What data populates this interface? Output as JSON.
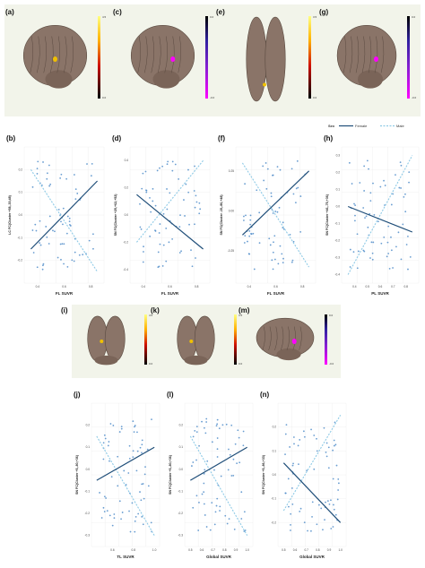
{
  "top_panels": [
    {
      "label": "(a)",
      "view": "lateral",
      "scale_top": "4.5",
      "scale_bottom": "0.0",
      "colormap": "hot"
    },
    {
      "label": "(c)",
      "view": "lateral",
      "scale_top": "0.0",
      "scale_bottom": "-0.0",
      "colormap": "cool"
    },
    {
      "label": "(e)",
      "view": "ventral",
      "scale_top": "3.5",
      "scale_bottom": "0.0",
      "colormap": "hot"
    },
    {
      "label": "(g)",
      "view": "lateral",
      "scale_top": "0.0",
      "scale_bottom": "-0.0",
      "colormap": "cool"
    }
  ],
  "bottom_panels": [
    {
      "label": "(i)",
      "view": "posterior",
      "scale_top": "4.5",
      "scale_bottom": "0.0",
      "colormap": "hot"
    },
    {
      "label": "(k)",
      "view": "posterior",
      "scale_top": "3.5",
      "scale_bottom": "0.0",
      "colormap": "hot"
    },
    {
      "label": "(m)",
      "view": "lateral",
      "scale_top": "0.0",
      "scale_bottom": "-0.0",
      "colormap": "cool"
    }
  ],
  "legend": {
    "title": "Sex",
    "female": "Female",
    "male": "Male"
  },
  "colors": {
    "female_line": "#1f4e79",
    "male_line": "#8ecae6",
    "points": "#4f8cc9",
    "panel_bg": "#f2f4ea",
    "brain": "#8a7468"
  },
  "chart_data": [
    {
      "label": "(b)",
      "type": "scatter",
      "xlabel": "FL SUVR",
      "ylabel": "LC FC(Cluster +58,-30,48)",
      "xticks": [
        "0.4",
        "0.6",
        "0.8"
      ],
      "xlim": [
        0.3,
        0.9
      ],
      "yticks": [
        "0.2",
        "0.1",
        "0.0",
        "-0.1",
        "-0.2"
      ],
      "ylim": [
        -0.3,
        0.3
      ],
      "female_line": [
        [
          0.35,
          -0.15
        ],
        [
          0.85,
          0.15
        ]
      ],
      "male_line": [
        [
          0.35,
          0.2
        ],
        [
          0.85,
          -0.25
        ]
      ]
    },
    {
      "label": "(d)",
      "type": "scatter",
      "xlabel": "FL SUVR",
      "ylabel": "SN FC(Cluster +25,+62,+52)",
      "xticks": [
        "0.4",
        "0.6",
        "0.8"
      ],
      "xlim": [
        0.3,
        0.9
      ],
      "yticks": [
        "0.4",
        "0.2",
        "0.0",
        "-0.2",
        "-0.4"
      ],
      "ylim": [
        -0.5,
        0.5
      ],
      "female_line": [
        [
          0.35,
          0.15
        ],
        [
          0.85,
          -0.25
        ]
      ],
      "male_line": [
        [
          0.35,
          -0.2
        ],
        [
          0.85,
          0.4
        ]
      ]
    },
    {
      "label": "(f)",
      "type": "scatter",
      "xlabel": "FL SUVR",
      "ylabel": "SN FC(Cluster -15,-86,+48)",
      "xticks": [
        "0.4",
        "0.6",
        "0.8"
      ],
      "xlim": [
        0.3,
        0.9
      ],
      "yticks": [
        "0.25",
        "0.00",
        "-0.25"
      ],
      "ylim": [
        -0.45,
        0.4
      ],
      "female_line": [
        [
          0.35,
          -0.15
        ],
        [
          0.85,
          0.25
        ]
      ],
      "male_line": [
        [
          0.35,
          0.3
        ],
        [
          0.85,
          -0.35
        ]
      ]
    },
    {
      "label": "(h)",
      "type": "scatter",
      "xlabel": "PL SUVR",
      "ylabel": "SN FC(Cluster +46,-75,+36)",
      "xticks": [
        "0.4",
        "0.5",
        "0.6",
        "0.7",
        "0.8"
      ],
      "xlim": [
        0.3,
        0.9
      ],
      "yticks": [
        "0.3",
        "0.2",
        "0.1",
        "0.0",
        "-0.1",
        "-0.2",
        "-0.3",
        "-0.4"
      ],
      "ylim": [
        -0.45,
        0.35
      ],
      "female_line": [
        [
          0.35,
          0.0
        ],
        [
          0.85,
          -0.15
        ]
      ],
      "male_line": [
        [
          0.35,
          -0.4
        ],
        [
          0.85,
          0.3
        ]
      ]
    },
    {
      "label": "(j)",
      "type": "scatter",
      "xlabel": "TL SUVR",
      "ylabel": "SN FC(Cluster +5,-80,+36)",
      "xticks": [
        "0.6",
        "0.8",
        "1.0"
      ],
      "xlim": [
        0.4,
        1.05
      ],
      "yticks": [
        "0.2",
        "0.1",
        "0.0",
        "-0.1",
        "-0.2",
        "-0.3"
      ],
      "ylim": [
        -0.35,
        0.3
      ],
      "female_line": [
        [
          0.45,
          -0.05
        ],
        [
          1.0,
          0.1
        ]
      ],
      "male_line": [
        [
          0.45,
          0.15
        ],
        [
          1.0,
          -0.3
        ]
      ]
    },
    {
      "label": "(l)",
      "type": "scatter",
      "xlabel": "Global SUVR",
      "ylabel": "SN FC(Cluster +5,-80,+36)",
      "xticks": [
        "0.5",
        "0.6",
        "0.7",
        "0.8",
        "0.9",
        "1.0"
      ],
      "xlim": [
        0.45,
        1.05
      ],
      "yticks": [
        "0.2",
        "0.1",
        "0.0",
        "-0.1",
        "-0.2",
        "-0.3"
      ],
      "ylim": [
        -0.35,
        0.3
      ],
      "female_line": [
        [
          0.5,
          -0.05
        ],
        [
          1.0,
          0.1
        ]
      ],
      "male_line": [
        [
          0.5,
          0.15
        ],
        [
          1.0,
          -0.3
        ]
      ]
    },
    {
      "label": "(n)",
      "type": "scatter",
      "xlabel": "Global SUVR",
      "ylabel": "SN FC(Cluster +5,-86,+33)",
      "xticks": [
        "0.5",
        "0.6",
        "0.7",
        "0.8",
        "0.9",
        "1.0"
      ],
      "xlim": [
        0.45,
        1.05
      ],
      "yticks": [
        "0.2",
        "0.1",
        "0.0",
        "-0.1",
        "-0.2"
      ],
      "ylim": [
        -0.3,
        0.3
      ],
      "female_line": [
        [
          0.5,
          0.05
        ],
        [
          1.0,
          -0.2
        ]
      ],
      "male_line": [
        [
          0.5,
          -0.15
        ],
        [
          1.0,
          0.25
        ]
      ]
    }
  ]
}
